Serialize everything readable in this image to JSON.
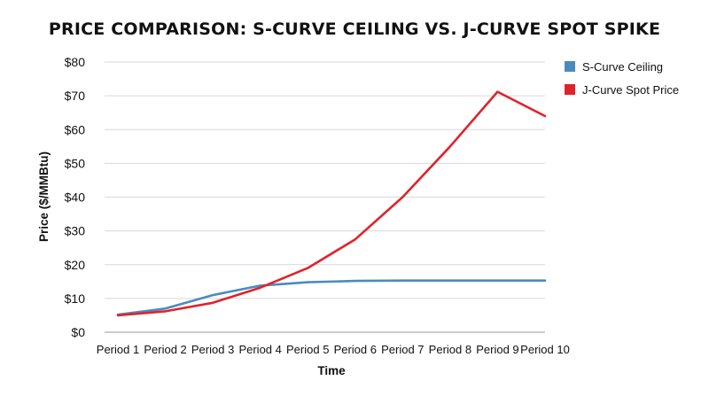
{
  "chart_data": {
    "type": "line",
    "title": "PRICE COMPARISON: S-CURVE CEILING VS. J-CURVE SPOT SPIKE",
    "xlabel": "Time",
    "ylabel": "Price ($/MMBtu)",
    "categories": [
      "Period 1",
      "Period 2",
      "Period 3",
      "Period 4",
      "Period 5",
      "Period 6",
      "Period 7",
      "Period 8",
      "Period 9",
      "Period 10"
    ],
    "ylim": [
      0,
      80
    ],
    "yticks": [
      0,
      10,
      20,
      30,
      40,
      50,
      60,
      70,
      80
    ],
    "ytick_labels": [
      "$0",
      "$10",
      "$20",
      "$30",
      "$40",
      "$50",
      "$60",
      "$70",
      "$80"
    ],
    "grid": true,
    "legend_position": "top-right",
    "series": [
      {
        "name": "S-Curve Ceiling",
        "color": "#4a8bbf",
        "values": [
          5.2,
          7.0,
          11.0,
          13.8,
          14.8,
          15.2,
          15.3,
          15.3,
          15.3,
          15.3
        ]
      },
      {
        "name": "J-Curve Spot Price",
        "color": "#e0232b",
        "values": [
          5.0,
          6.2,
          8.7,
          13.2,
          19.0,
          27.5,
          40.0,
          55.0,
          71.2,
          64.0
        ]
      }
    ]
  }
}
